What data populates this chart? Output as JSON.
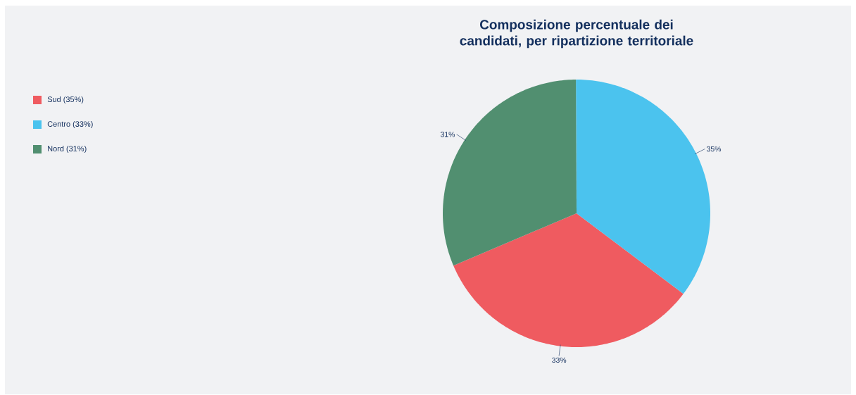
{
  "chart_data": {
    "type": "pie",
    "title": "Composizione percentuale dei candidati, per ripartizione territoriale",
    "categories": [
      "Sud (35%)",
      "Centro (33%)",
      "Nord (31%)"
    ],
    "values": [
      33,
      35,
      31
    ],
    "value_labels": [
      "33%",
      "35%",
      "31%"
    ],
    "colors": [
      "#ef5b60",
      "#4bc3ee",
      "#518f70"
    ],
    "legend": "top left"
  }
}
